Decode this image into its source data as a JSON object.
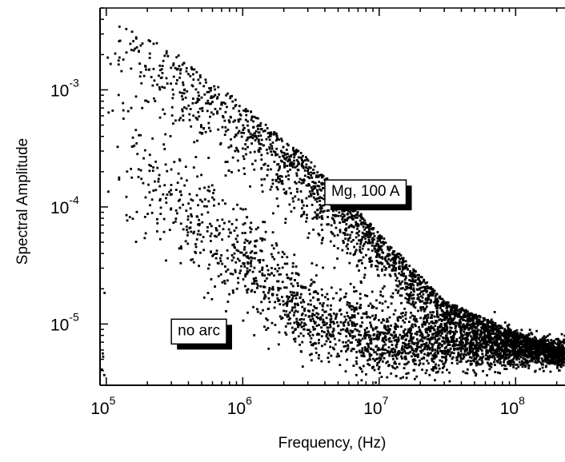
{
  "chart_data": {
    "type": "scatter",
    "title": "",
    "xlabel": "Frequency, (Hz)",
    "ylabel": "Spectral Amplitude",
    "x_scale": "log",
    "y_scale": "log",
    "xlim": [
      90000,
      230000000
    ],
    "ylim": [
      3e-06,
      0.005
    ],
    "grid": false,
    "legend": "none",
    "x_ticks": [
      {
        "value": 100000,
        "base": "10",
        "exp": "5"
      },
      {
        "value": 1000000,
        "base": "10",
        "exp": "6"
      },
      {
        "value": 10000000,
        "base": "10",
        "exp": "7"
      },
      {
        "value": 100000000,
        "base": "10",
        "exp": "8"
      }
    ],
    "y_ticks": [
      {
        "value": 0.001,
        "base": "10",
        "exp": "-3"
      },
      {
        "value": 0.0001,
        "base": "10",
        "exp": "-4"
      },
      {
        "value": 1e-05,
        "base": "10",
        "exp": "-5"
      }
    ],
    "series": [
      {
        "label_text": "Mg, 100 A",
        "color": "#000000",
        "trend": [
          {
            "x": 100000,
            "y": 0.0045
          },
          {
            "x": 300000,
            "y": 0.0022
          },
          {
            "x": 1000000,
            "y": 0.00075
          },
          {
            "x": 3000000,
            "y": 0.00026
          },
          {
            "x": 10000000,
            "y": 6e-05
          },
          {
            "x": 30000000,
            "y": 1.6e-05
          },
          {
            "x": 100000000,
            "y": 8.5e-06
          },
          {
            "x": 230000000,
            "y": 6e-06
          }
        ]
      },
      {
        "label_text": "no arc",
        "color": "#000000",
        "trend": [
          {
            "x": 100000,
            "y": 0.00035
          },
          {
            "x": 300000,
            "y": 0.00011
          },
          {
            "x": 1000000,
            "y": 3.5e-05
          },
          {
            "x": 3000000,
            "y": 1.2e-05
          },
          {
            "x": 10000000,
            "y": 7.5e-06
          },
          {
            "x": 30000000,
            "y": 6.8e-06
          },
          {
            "x": 100000000,
            "y": 6.2e-06
          },
          {
            "x": 230000000,
            "y": 5.8e-06
          }
        ]
      }
    ],
    "annotations": [
      {
        "text": "Mg, 100 A",
        "x": 4000000,
        "y": 0.00017
      },
      {
        "text": "no arc",
        "x": 300000,
        "y": 1.1e-05
      }
    ]
  }
}
